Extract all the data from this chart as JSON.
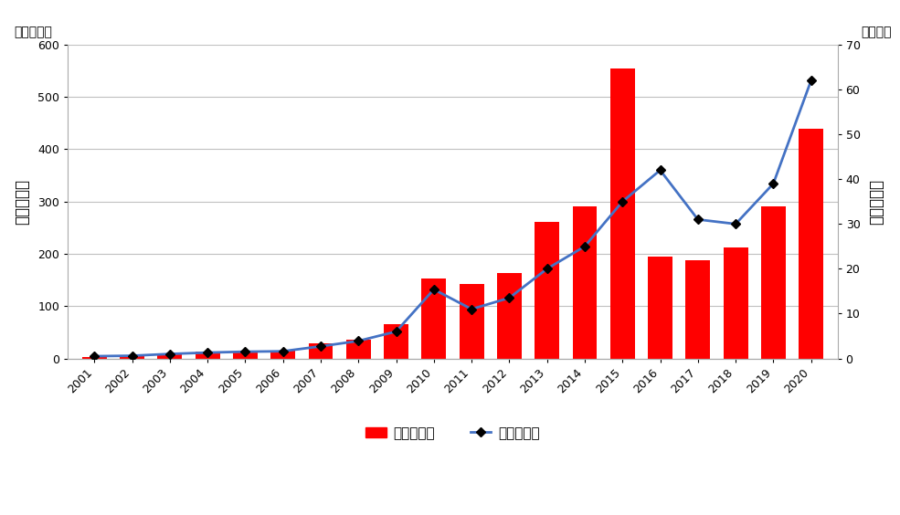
{
  "years": [
    "2001",
    "2002",
    "2003",
    "2004",
    "2005",
    "2006",
    "2007",
    "2008",
    "2009",
    "2010",
    "2011",
    "2012",
    "2013",
    "2014",
    "2015",
    "2016",
    "2017",
    "2018",
    "2019",
    "2020"
  ],
  "bar_values": [
    3,
    4,
    9,
    13,
    13,
    14,
    28,
    36,
    65,
    153,
    142,
    163,
    261,
    290,
    554,
    195,
    187,
    212,
    290,
    440
  ],
  "line_values": [
    0.5,
    0.6,
    1.0,
    1.3,
    1.5,
    1.6,
    2.7,
    3.9,
    6.0,
    15.4,
    11.0,
    13.5,
    20.0,
    25.0,
    35.0,
    42.0,
    31.0,
    30.0,
    39.0,
    62.0
  ],
  "bar_color": "#FF0000",
  "line_color": "#4472C4",
  "ylabel_left": "单边成交额",
  "ylabel_right": "单边成交量",
  "unit_left": "（万亿元）",
  "unit_right": "（亿手）",
  "ylim_left": [
    0,
    600
  ],
  "ylim_right": [
    0,
    70
  ],
  "yticks_left": [
    0,
    100,
    200,
    300,
    400,
    500,
    600
  ],
  "yticks_right": [
    0,
    10,
    20,
    30,
    40,
    50,
    60,
    70
  ],
  "legend_label_bar": "单边成交额",
  "legend_label_line": "单边成交量",
  "background_color": "#FFFFFF",
  "grid_color": "#C0C0C0",
  "font_size_tick": 9,
  "font_size_label": 12,
  "font_size_legend": 11,
  "font_size_unit": 10
}
